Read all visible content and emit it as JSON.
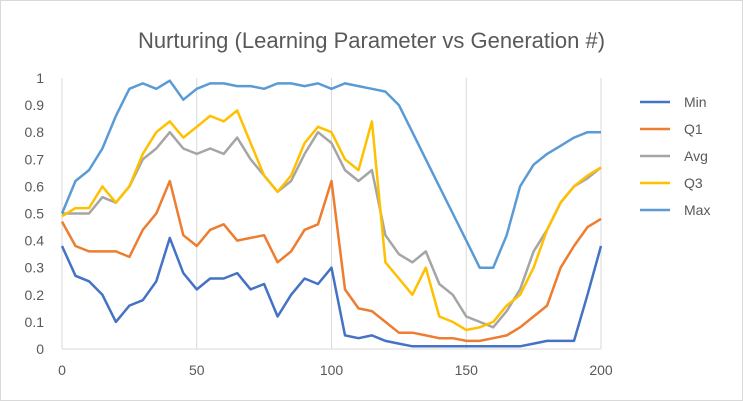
{
  "chart_data": {
    "type": "line",
    "title": "Nurturing (Learning Parameter vs Generation #)",
    "xlabel": "",
    "ylabel": "",
    "xlim": [
      0,
      200
    ],
    "ylim": [
      0,
      1
    ],
    "x_ticks": [
      "0",
      "50",
      "100",
      "150",
      "200"
    ],
    "y_ticks": [
      "0",
      "0.1",
      "0.2",
      "0.3",
      "0.4",
      "0.5",
      "0.6",
      "0.7",
      "0.8",
      "0.9",
      "1"
    ],
    "grid": "vertical",
    "legend_position": "right",
    "x": [
      0,
      5,
      10,
      15,
      20,
      25,
      30,
      35,
      40,
      45,
      50,
      55,
      60,
      65,
      70,
      75,
      80,
      85,
      90,
      95,
      100,
      105,
      110,
      115,
      120,
      125,
      130,
      135,
      140,
      145,
      150,
      155,
      160,
      165,
      170,
      175,
      180,
      185,
      190,
      195,
      200
    ],
    "series": [
      {
        "name": "Min",
        "color": "#4472c4",
        "values": [
          0.38,
          0.27,
          0.25,
          0.2,
          0.1,
          0.16,
          0.18,
          0.25,
          0.41,
          0.28,
          0.22,
          0.26,
          0.26,
          0.28,
          0.22,
          0.24,
          0.12,
          0.2,
          0.26,
          0.24,
          0.3,
          0.05,
          0.04,
          0.05,
          0.03,
          0.02,
          0.01,
          0.01,
          0.01,
          0.01,
          0.01,
          0.01,
          0.01,
          0.01,
          0.01,
          0.02,
          0.03,
          0.03,
          0.03,
          0.2,
          0.38
        ]
      },
      {
        "name": "Q1",
        "color": "#ed7d31",
        "values": [
          0.47,
          0.38,
          0.36,
          0.36,
          0.36,
          0.34,
          0.44,
          0.5,
          0.62,
          0.42,
          0.38,
          0.44,
          0.46,
          0.4,
          0.41,
          0.42,
          0.32,
          0.36,
          0.44,
          0.46,
          0.62,
          0.22,
          0.15,
          0.14,
          0.1,
          0.06,
          0.06,
          0.05,
          0.04,
          0.04,
          0.03,
          0.03,
          0.04,
          0.05,
          0.08,
          0.12,
          0.16,
          0.3,
          0.38,
          0.45,
          0.48
        ]
      },
      {
        "name": "Avg",
        "color": "#a5a5a5",
        "values": [
          0.5,
          0.5,
          0.5,
          0.56,
          0.54,
          0.6,
          0.7,
          0.74,
          0.8,
          0.74,
          0.72,
          0.74,
          0.72,
          0.78,
          0.7,
          0.64,
          0.58,
          0.62,
          0.72,
          0.8,
          0.76,
          0.66,
          0.62,
          0.66,
          0.42,
          0.35,
          0.32,
          0.36,
          0.24,
          0.2,
          0.12,
          0.1,
          0.08,
          0.14,
          0.22,
          0.36,
          0.44,
          0.54,
          0.6,
          0.63,
          0.67
        ]
      },
      {
        "name": "Q3",
        "color": "#ffc000",
        "values": [
          0.49,
          0.52,
          0.52,
          0.6,
          0.54,
          0.6,
          0.72,
          0.8,
          0.84,
          0.78,
          0.82,
          0.86,
          0.84,
          0.88,
          0.76,
          0.64,
          0.58,
          0.64,
          0.76,
          0.82,
          0.8,
          0.7,
          0.66,
          0.84,
          0.32,
          0.26,
          0.2,
          0.3,
          0.12,
          0.1,
          0.07,
          0.08,
          0.1,
          0.16,
          0.2,
          0.3,
          0.44,
          0.54,
          0.6,
          0.64,
          0.67
        ]
      },
      {
        "name": "Max",
        "color": "#5b9bd5",
        "values": [
          0.5,
          0.62,
          0.66,
          0.74,
          0.86,
          0.96,
          0.98,
          0.96,
          0.99,
          0.92,
          0.96,
          0.98,
          0.98,
          0.97,
          0.97,
          0.96,
          0.98,
          0.98,
          0.97,
          0.98,
          0.96,
          0.98,
          0.97,
          0.96,
          0.95,
          0.9,
          0.8,
          0.7,
          0.6,
          0.5,
          0.4,
          0.3,
          0.3,
          0.42,
          0.6,
          0.68,
          0.72,
          0.75,
          0.78,
          0.8,
          0.8
        ]
      }
    ]
  }
}
